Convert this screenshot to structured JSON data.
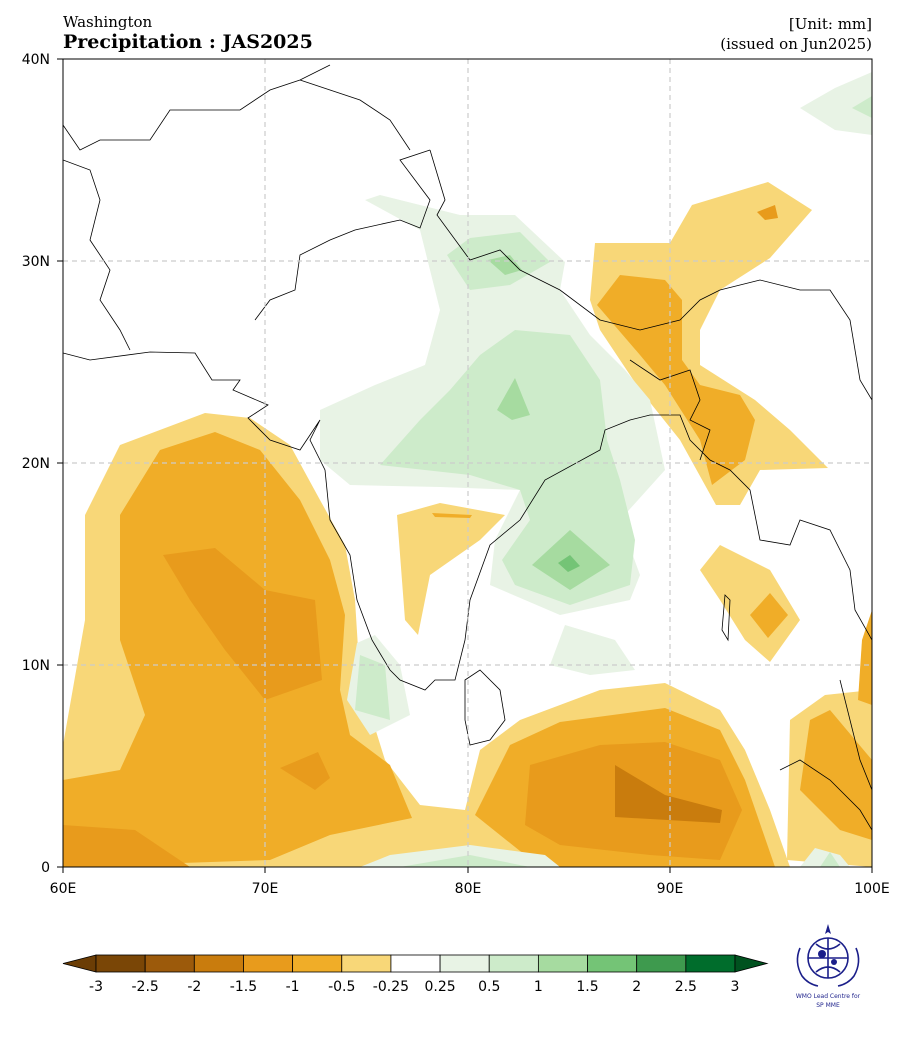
{
  "header": {
    "agency": "Washington",
    "title": "Precipitation : JAS2025",
    "unit": "[Unit: mm]",
    "issued": "(issued on Jun2025)"
  },
  "map": {
    "lon_range": [
      60,
      100
    ],
    "lat_range": [
      0,
      40
    ],
    "lon_ticks": [
      "60E",
      "70E",
      "80E",
      "90E",
      "100E"
    ],
    "lat_ticks": [
      "0",
      "10N",
      "20N",
      "30N",
      "40N"
    ],
    "gridlines": true
  },
  "colorbar": {
    "labels": [
      "-3",
      "-2.5",
      "-2",
      "-1.5",
      "-1",
      "-0.5",
      "-0.25",
      "0.25",
      "0.5",
      "1",
      "1.5",
      "2",
      "2.5",
      "3"
    ],
    "colors": [
      "#7a4606",
      "#9c5a0b",
      "#c97c0d",
      "#e89b1c",
      "#f0ad28",
      "#f8d778",
      "#ffffff",
      "#e8f3e5",
      "#cdebca",
      "#a6dba0",
      "#74c476",
      "#3e9a4e",
      "#006d2c"
    ],
    "under_color": "#6b3d05",
    "over_color": "#00521f"
  },
  "logo": {
    "line1": "WMO Lead Centre for",
    "line2": "SP MME"
  }
}
